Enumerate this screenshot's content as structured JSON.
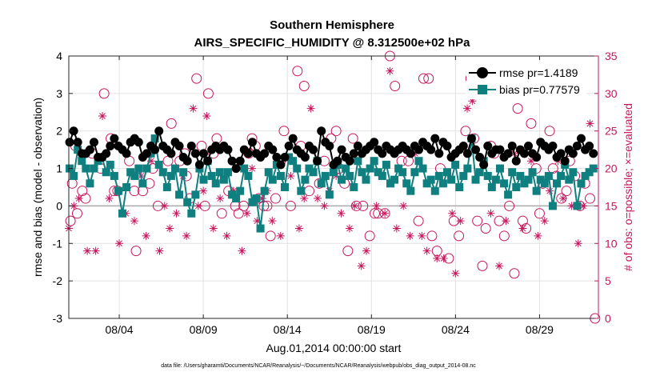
{
  "chart_data": {
    "type": "line",
    "title": "Southern Hemisphere",
    "subtitle": "AIRS_SPECIFIC_HUMIDITY @ 8.312500e+02 hPa",
    "xlabel": "Aug.01,2014 00:00:00 start",
    "ylabel_left": "rmse and bias (model - observation)",
    "ylabel_right": "# of obs: o=possible; ×=evaluated",
    "footnote": "data file: /Users/gharamti/Documents/NCAR/Reanalysis/~/Documents/NCAR/Reanalysis/webpub/obs_diag_output_2014-08.nc",
    "xlim": [
      1,
      32.5
    ],
    "ylim_left": [
      -3,
      4
    ],
    "ylim_right": [
      0,
      35
    ],
    "x_ticks": [
      4,
      9,
      14,
      19,
      24,
      29
    ],
    "x_tick_labels": [
      "08/04",
      "08/09",
      "08/14",
      "08/19",
      "08/24",
      "08/29"
    ],
    "y_ticks_left": [
      -3,
      -2,
      -1,
      0,
      1,
      2,
      3,
      4
    ],
    "y_ticks_right": [
      0,
      5,
      10,
      15,
      20,
      25,
      30,
      35
    ],
    "grid": true,
    "legend_position": "top-right",
    "colors": {
      "rmse": "#000000",
      "bias": "#0f7f7f",
      "obs": "#c8155c",
      "zero_line": "#aaaaaa"
    },
    "series": [
      {
        "name": "rmse pr=1.4189",
        "axis": "left",
        "values": [
          1.7,
          2.0,
          1.7,
          1.4,
          1.4,
          1.5,
          1.7,
          1.3,
          1.3,
          1.4,
          1.6,
          1.8,
          1.6,
          1.5,
          1.4,
          1.7,
          1.8,
          1.7,
          1.3,
          1.4,
          1.6,
          1.5,
          2.0,
          1.6,
          1.5,
          1.4,
          1.7,
          1.6,
          1.3,
          1.2,
          1.6,
          1.4,
          1.1,
          1.4,
          1.2,
          1.5,
          1.6,
          1.5,
          1.6,
          1.5,
          1.2,
          1.0,
          1.2,
          1.5,
          1.4,
          1.7,
          1.4,
          1.3,
          1.4,
          1.6,
          1.5,
          1.3,
          1.1,
          1.3,
          1.6,
          1.8,
          1.5,
          1.4,
          1.3,
          1.6,
          1.5,
          1.2,
          2.0,
          1.7,
          1.6,
          1.1,
          1.2,
          1.5,
          1.3,
          1.2,
          1.4,
          1.6,
          1.4,
          1.5,
          1.6,
          1.7,
          1.5,
          1.4,
          1.6,
          1.5,
          1.4,
          1.5,
          1.6,
          1.5,
          1.4,
          1.6,
          1.5,
          1.7,
          1.6,
          1.5,
          1.8,
          1.4,
          1.7,
          1.6,
          1.3,
          1.4,
          1.5,
          1.6,
          1.4,
          1.8,
          1.5,
          1.3,
          1.1,
          1.6,
          1.4,
          1.5,
          1.5,
          1.3,
          1.4,
          1.6,
          1.2,
          1.5,
          1.4,
          1.6,
          1.4,
          1.3,
          1.7,
          1.6,
          1.5,
          1.6,
          1.3,
          1.4,
          1.2,
          1.5,
          1.4,
          1.6,
          1.8,
          1.5,
          1.6,
          1.4
        ]
      },
      {
        "name": "bias pr=0.77579",
        "axis": "left",
        "values": [
          1.0,
          0.8,
          1.5,
          1.2,
          1.0,
          0.6,
          1.0,
          1.2,
          1.3,
          0.9,
          1.1,
          0.8,
          0.4,
          -0.2,
          0.5,
          0.9,
          0.8,
          1.0,
          0.6,
          1.0,
          1.4,
          1.8,
          1.1,
          0.9,
          0.5,
          0.8,
          1.0,
          0.3,
          0.9,
          0.1,
          -0.2,
          0.3,
          1.0,
          0.7,
          1.2,
          0.8,
          0.6,
          0.9,
          0.7,
          0.9,
          0.3,
          0.2,
          0.4,
          1.0,
          0.8,
          0.1,
          0.2,
          -0.6,
          0.4,
          0.9,
          0.7,
          1.1,
          0.8,
          0.5,
          1.3,
          1.2,
          1.0,
          0.4,
          0.7,
          1.0,
          0.9,
          1.2,
          0.6,
          0.8,
          0.3,
          0.9,
          1.1,
          0.7,
          1.0,
          0.8,
          0.5,
          1.2,
          0.9,
          0.7,
          1.0,
          1.2,
          0.9,
          0.8,
          1.1,
          0.6,
          0.7,
          1.0,
          0.9,
          0.6,
          0.4,
          0.9,
          1.2,
          1.0,
          0.6,
          0.7,
          0.4,
          0.8,
          0.6,
          0.9,
          0.7,
          1.1,
          0.5,
          0.8,
          1.0,
          1.8,
          0.7,
          0.9,
          1.2,
          0.8,
          0.5,
          0.7,
          1.0,
          0.6,
          0.3,
          0.9,
          0.5,
          0.8,
          0.6,
          0.7,
          0.9,
          0.4,
          0.7,
          0.6,
          0.8,
          0.0,
          0.6,
          0.8,
          1.1,
          0.7,
          0.9,
          0.0,
          0.6,
          0.8,
          0.9,
          1.0
        ]
      },
      {
        "name": "possible",
        "axis": "right",
        "marker": "circle",
        "points": [
          [
            1.1,
            13
          ],
          [
            1.2,
            18
          ],
          [
            1.4,
            23
          ],
          [
            1.5,
            14
          ],
          [
            1.8,
            17
          ],
          [
            2.0,
            16
          ],
          [
            2.4,
            22
          ],
          [
            2.9,
            20
          ],
          [
            3.1,
            30
          ],
          [
            3.5,
            24
          ],
          [
            3.7,
            17
          ],
          [
            3.9,
            17
          ],
          [
            4.6,
            21
          ],
          [
            4.9,
            17
          ],
          [
            5.0,
            9
          ],
          [
            5.4,
            17
          ],
          [
            5.8,
            18
          ],
          [
            6.0,
            20
          ],
          [
            6.3,
            15
          ],
          [
            6.9,
            21
          ],
          [
            7.1,
            26
          ],
          [
            7.6,
            21
          ],
          [
            7.9,
            22
          ],
          [
            8.0,
            19
          ],
          [
            8.2,
            16
          ],
          [
            8.6,
            32
          ],
          [
            8.9,
            23
          ],
          [
            9.1,
            15
          ],
          [
            9.3,
            30
          ],
          [
            9.6,
            22
          ],
          [
            9.8,
            24
          ],
          [
            10.1,
            14
          ],
          [
            10.5,
            17
          ],
          [
            10.9,
            15
          ],
          [
            11.1,
            14
          ],
          [
            11.4,
            15
          ],
          [
            11.7,
            22
          ],
          [
            11.9,
            24
          ],
          [
            12.1,
            23
          ],
          [
            12.3,
            16
          ],
          [
            12.6,
            15
          ],
          [
            12.8,
            15
          ],
          [
            13.0,
            11
          ],
          [
            13.3,
            16
          ],
          [
            13.6,
            21
          ],
          [
            13.8,
            25
          ],
          [
            14.2,
            15
          ],
          [
            14.6,
            33
          ],
          [
            14.8,
            23
          ],
          [
            15.0,
            31
          ],
          [
            15.3,
            17
          ],
          [
            15.9,
            18
          ],
          [
            16.2,
            21
          ],
          [
            16.6,
            24
          ],
          [
            16.9,
            25
          ],
          [
            17.1,
            20
          ],
          [
            17.4,
            18
          ],
          [
            17.6,
            9
          ],
          [
            17.9,
            24
          ],
          [
            18.1,
            15
          ],
          [
            18.5,
            15
          ],
          [
            18.9,
            11
          ],
          [
            19.2,
            14
          ],
          [
            19.4,
            14
          ],
          [
            19.8,
            14
          ],
          [
            20.1,
            35
          ],
          [
            20.4,
            31
          ],
          [
            20.8,
            21
          ],
          [
            21.2,
            21
          ],
          [
            21.8,
            13
          ],
          [
            22.1,
            32
          ],
          [
            22.4,
            32
          ],
          [
            22.6,
            11
          ],
          [
            22.9,
            9
          ],
          [
            23.1,
            20
          ],
          [
            23.6,
            8
          ],
          [
            23.9,
            13
          ],
          [
            24.2,
            11
          ],
          [
            24.6,
            25
          ],
          [
            24.9,
            32
          ],
          [
            25.1,
            24
          ],
          [
            25.3,
            13
          ],
          [
            25.6,
            7
          ],
          [
            25.8,
            12
          ],
          [
            26.1,
            23
          ],
          [
            26.3,
            22
          ],
          [
            26.6,
            13
          ],
          [
            26.9,
            11
          ],
          [
            27.2,
            15
          ],
          [
            27.5,
            6
          ],
          [
            27.7,
            28
          ],
          [
            28.0,
            13
          ],
          [
            28.2,
            12
          ],
          [
            28.5,
            26
          ],
          [
            28.8,
            20
          ],
          [
            29.0,
            14
          ],
          [
            29.2,
            18
          ],
          [
            29.6,
            25
          ],
          [
            29.8,
            20
          ],
          [
            30.0,
            19
          ],
          [
            30.3,
            16
          ],
          [
            30.6,
            17
          ],
          [
            30.8,
            21
          ],
          [
            31.1,
            19
          ],
          [
            31.4,
            15
          ],
          [
            31.7,
            18
          ],
          [
            32.0,
            16
          ],
          [
            32.3,
            0
          ]
        ]
      },
      {
        "name": "evaluated",
        "axis": "right",
        "marker": "asterisk",
        "points": [
          [
            1.0,
            12
          ],
          [
            1.3,
            15
          ],
          [
            1.6,
            16
          ],
          [
            2.1,
            9
          ],
          [
            2.6,
            9
          ],
          [
            3.0,
            27
          ],
          [
            3.4,
            16
          ],
          [
            4.0,
            10
          ],
          [
            4.4,
            14
          ],
          [
            4.9,
            13
          ],
          [
            5.3,
            19
          ],
          [
            5.6,
            11
          ],
          [
            5.9,
            21
          ],
          [
            6.4,
            9
          ],
          [
            6.7,
            15
          ],
          [
            7.0,
            12
          ],
          [
            7.4,
            14
          ],
          [
            7.8,
            19
          ],
          [
            8.0,
            11
          ],
          [
            8.4,
            28
          ],
          [
            8.7,
            15
          ],
          [
            9.0,
            17
          ],
          [
            9.2,
            27
          ],
          [
            9.6,
            12
          ],
          [
            10.0,
            16
          ],
          [
            10.4,
            11
          ],
          [
            10.8,
            17
          ],
          [
            11.3,
            9
          ],
          [
            11.6,
            14
          ],
          [
            11.9,
            20
          ],
          [
            12.2,
            13
          ],
          [
            12.5,
            16
          ],
          [
            12.8,
            17
          ],
          [
            13.1,
            13
          ],
          [
            13.6,
            11
          ],
          [
            14.2,
            19
          ],
          [
            14.7,
            12
          ],
          [
            15.0,
            16
          ],
          [
            15.4,
            28
          ],
          [
            15.8,
            16
          ],
          [
            16.2,
            15
          ],
          [
            16.5,
            17
          ],
          [
            16.9,
            19
          ],
          [
            17.2,
            14
          ],
          [
            17.7,
            12
          ],
          [
            18.0,
            15
          ],
          [
            18.4,
            7
          ],
          [
            18.7,
            9
          ],
          [
            19.3,
            15
          ],
          [
            19.8,
            14
          ],
          [
            20.1,
            33
          ],
          [
            20.5,
            12
          ],
          [
            20.9,
            15
          ],
          [
            21.3,
            11
          ],
          [
            21.6,
            22
          ],
          [
            22.0,
            11
          ],
          [
            22.3,
            9
          ],
          [
            22.9,
            8
          ],
          [
            23.3,
            8
          ],
          [
            23.8,
            14
          ],
          [
            24.0,
            6
          ],
          [
            24.3,
            13
          ],
          [
            24.7,
            28
          ],
          [
            25.0,
            29
          ],
          [
            25.6,
            21
          ],
          [
            26.1,
            14
          ],
          [
            26.6,
            7
          ],
          [
            27.0,
            13
          ],
          [
            27.5,
            22
          ],
          [
            28.0,
            12
          ],
          [
            28.5,
            21
          ],
          [
            28.9,
            11
          ],
          [
            29.3,
            13
          ],
          [
            29.6,
            17
          ],
          [
            30.1,
            21
          ],
          [
            30.4,
            16
          ],
          [
            30.9,
            15
          ],
          [
            31.3,
            10
          ],
          [
            31.6,
            15
          ],
          [
            32.0,
            26
          ]
        ]
      }
    ]
  }
}
